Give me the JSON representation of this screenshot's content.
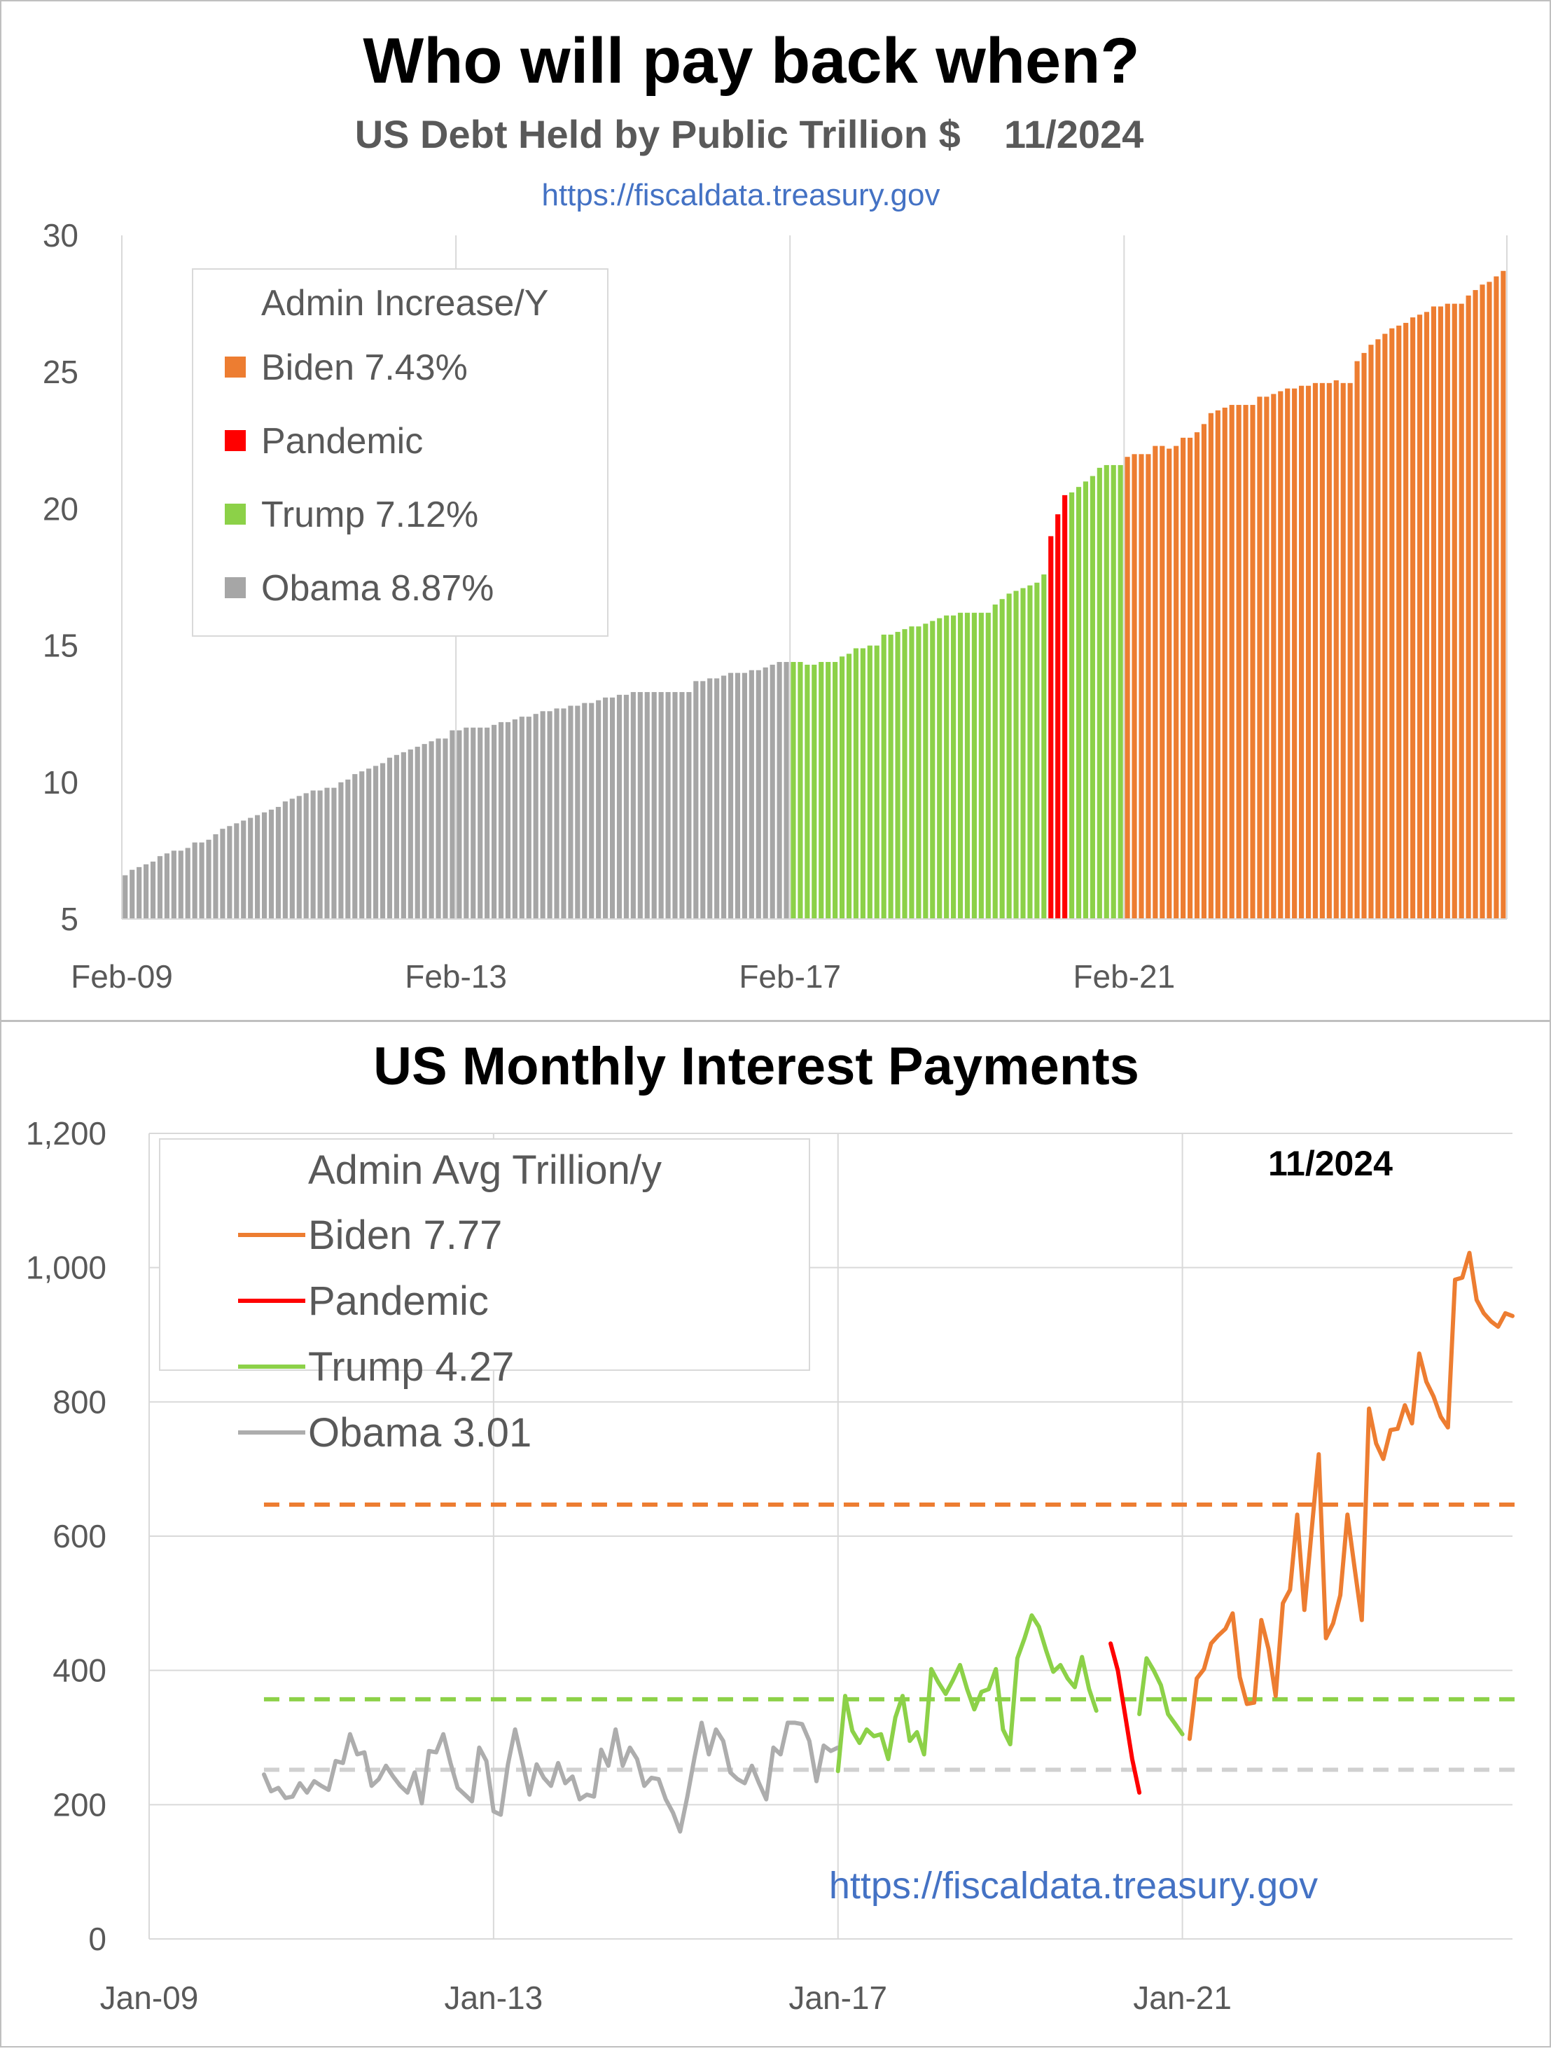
{
  "top_chart": {
    "title": "Who will pay back when?",
    "subtitle": "US Debt Held by Public Trillion $    11/2024",
    "source": "https://fiscaldata.treasury.gov"
  },
  "bottom_chart": {
    "title": "US Monthly Interest Payments",
    "date_note": "11/2024",
    "source": "https://fiscaldata.treasury.gov"
  },
  "colors": {
    "biden": "#ED7D31",
    "pandemic": "#FF0000",
    "trump": "#8CD148",
    "obama": "#A6A6A6",
    "obama_line": "#ADADAD",
    "obama_avg": "#D0D0D0",
    "grid": "#D9D9D9",
    "axis_text": "#595959",
    "link": "#4472C4"
  },
  "chart_data": [
    {
      "type": "bar",
      "title": "Who will pay back when?",
      "subtitle": "US Debt Held by Public Trillion $    11/2024",
      "ylim": [
        5,
        30
      ],
      "yticks": [
        "5",
        "10",
        "15",
        "20",
        "25",
        "30"
      ],
      "x_tick_labels": [
        "Feb-09",
        "Feb-13",
        "Feb-17",
        "Feb-21"
      ],
      "x_tick_months": [
        0,
        48,
        96,
        144
      ],
      "legend": {
        "title": "Admin Increase/Y",
        "entries": [
          {
            "label": "Biden 7.43%",
            "series": "biden"
          },
          {
            "label": "Pandemic",
            "series": "pandemic"
          },
          {
            "label": "Trump 7.12%",
            "series": "trump"
          },
          {
            "label": "Obama 8.87%",
            "series": "obama"
          }
        ]
      },
      "series": [
        {
          "name": "Obama",
          "key": "obama",
          "start_month": 0,
          "values": [
            6.6,
            6.8,
            6.9,
            7.0,
            7.1,
            7.3,
            7.4,
            7.5,
            7.5,
            7.6,
            7.8,
            7.8,
            7.9,
            8.1,
            8.3,
            8.4,
            8.5,
            8.6,
            8.7,
            8.8,
            8.9,
            9.0,
            9.1,
            9.3,
            9.4,
            9.5,
            9.6,
            9.7,
            9.7,
            9.8,
            9.8,
            10.0,
            10.1,
            10.3,
            10.4,
            10.5,
            10.6,
            10.7,
            10.9,
            11.0,
            11.1,
            11.2,
            11.3,
            11.4,
            11.5,
            11.6,
            11.6,
            11.9,
            11.9,
            12.0,
            12.0,
            12.0,
            12.0,
            12.1,
            12.2,
            12.2,
            12.3,
            12.4,
            12.4,
            12.5,
            12.6,
            12.6,
            12.7,
            12.7,
            12.8,
            12.8,
            12.9,
            12.9,
            13.0,
            13.1,
            13.1,
            13.2,
            13.2,
            13.3,
            13.3,
            13.3,
            13.3,
            13.3,
            13.3,
            13.3,
            13.3,
            13.3,
            13.7,
            13.7,
            13.8,
            13.8,
            13.9,
            14.0,
            14.0,
            14.0,
            14.1,
            14.1,
            14.2,
            14.3,
            14.4,
            14.4
          ]
        },
        {
          "name": "Trump",
          "key": "trump",
          "start_month": 96,
          "values": [
            14.4,
            14.4,
            14.3,
            14.3,
            14.4,
            14.4,
            14.4,
            14.6,
            14.7,
            14.9,
            14.9,
            15.0,
            15.0,
            15.4,
            15.4,
            15.5,
            15.6,
            15.7,
            15.7,
            15.8,
            15.9,
            16.0,
            16.1,
            16.1,
            16.2,
            16.2,
            16.2,
            16.2,
            16.2,
            16.5,
            16.7,
            16.9,
            17.0,
            17.1,
            17.2,
            17.3,
            17.6
          ]
        },
        {
          "name": "Pandemic",
          "key": "pandemic",
          "start_month": 133,
          "values": [
            19.0,
            19.8,
            20.5
          ]
        },
        {
          "name": "Trump",
          "key": "trump",
          "start_month": 136,
          "values": [
            20.6,
            20.8,
            21.0,
            21.2,
            21.5,
            21.6,
            21.6,
            21.6
          ]
        },
        {
          "name": "Biden",
          "key": "biden",
          "start_month": 144,
          "values": [
            21.9,
            22.0,
            22.0,
            22.0,
            22.3,
            22.3,
            22.2,
            22.3,
            22.6,
            22.6,
            22.8,
            23.1,
            23.5,
            23.6,
            23.7,
            23.8,
            23.8,
            23.8,
            23.8,
            24.1,
            24.1,
            24.2,
            24.3,
            24.4,
            24.4,
            24.5,
            24.5,
            24.6,
            24.6,
            24.6,
            24.7,
            24.6,
            24.6,
            25.4,
            25.7,
            26.0,
            26.2,
            26.4,
            26.6,
            26.7,
            26.8,
            27.0,
            27.1,
            27.2,
            27.4,
            27.4,
            27.5,
            27.5,
            27.5,
            27.8,
            28.0,
            28.2,
            28.3,
            28.5,
            28.7
          ]
        }
      ]
    },
    {
      "type": "line",
      "title": "US Monthly Interest Payments",
      "ylim": [
        0,
        1200
      ],
      "yticks": [
        "0",
        "200",
        "400",
        "600",
        "800",
        "1,000",
        "1,200"
      ],
      "x_tick_labels": [
        "Jan-09",
        "Jan-13",
        "Jan-17",
        "Jan-21"
      ],
      "x_tick_months": [
        0,
        48,
        96,
        144
      ],
      "legend": {
        "title": "Admin Avg Trillion/y",
        "entries": [
          {
            "label": "Biden 7.77",
            "series": "biden"
          },
          {
            "label": "Pandemic",
            "series": "pandemic"
          },
          {
            "label": "Trump 4.27",
            "series": "trump"
          },
          {
            "label": "Obama 3.01",
            "series": "obama"
          }
        ]
      },
      "averages": [
        {
          "key": "biden",
          "value": 647,
          "from_month": 16,
          "to_month": 191
        },
        {
          "key": "trump",
          "value": 357,
          "from_month": 16,
          "to_month": 191
        },
        {
          "key": "obama",
          "value": 252,
          "from_month": 16,
          "to_month": 191
        }
      ],
      "series": [
        {
          "name": "Obama",
          "key": "obama",
          "start_month": 16,
          "values": [
            245,
            220,
            225,
            210,
            212,
            232,
            218,
            235,
            228,
            222,
            265,
            262,
            305,
            275,
            278,
            228,
            238,
            258,
            242,
            228,
            218,
            248,
            202,
            280,
            278,
            305,
            262,
            225,
            215,
            205,
            285,
            265,
            190,
            185,
            260,
            312,
            265,
            215,
            260,
            240,
            228,
            262,
            232,
            242,
            208,
            215,
            212,
            282,
            258,
            312,
            258,
            285,
            268,
            228,
            240,
            238,
            208,
            188,
            160,
            212,
            270,
            322,
            275,
            312,
            295,
            248,
            238,
            232,
            258,
            232,
            208,
            285,
            275,
            322,
            322,
            320,
            295,
            235,
            288,
            280,
            285
          ]
        },
        {
          "name": "Trump",
          "key": "trump",
          "start_month": 96,
          "values": [
            250,
            362,
            310,
            292,
            312,
            302,
            305,
            268,
            330,
            362,
            295,
            308,
            275,
            402,
            382,
            365,
            385,
            408,
            372,
            342,
            368,
            372,
            402,
            312,
            290,
            418,
            448,
            482,
            465,
            430,
            398,
            408,
            388,
            375,
            420,
            372,
            340
          ]
        },
        {
          "name": "Pandemic",
          "key": "pandemic",
          "start_month": 134,
          "values": [
            440,
            400,
            335,
            268,
            218
          ]
        },
        {
          "name": "Trump",
          "key": "trump",
          "start_month": 138,
          "values": [
            335,
            418,
            400,
            378,
            335,
            320,
            305
          ]
        },
        {
          "name": "Biden",
          "key": "biden",
          "start_month": 145,
          "values": [
            298,
            388,
            402,
            440,
            452,
            462,
            485,
            390,
            350,
            352,
            475,
            432,
            362,
            500,
            520,
            632,
            490,
            608,
            722,
            448,
            470,
            512,
            632,
            552,
            475,
            790,
            738,
            715,
            758,
            760,
            795,
            768,
            872,
            830,
            808,
            778,
            762,
            982,
            985,
            1022,
            952,
            932,
            920,
            912,
            932,
            928
          ]
        }
      ]
    }
  ]
}
